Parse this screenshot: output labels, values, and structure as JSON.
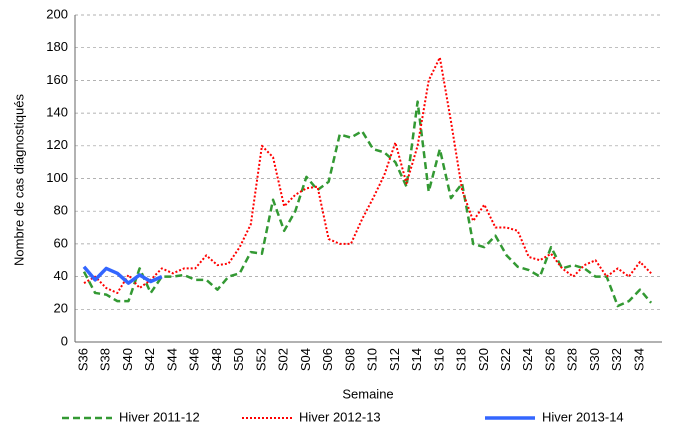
{
  "chart_data": {
    "type": "line",
    "x_label": "Semaine",
    "y_label": "Nombre de cas diagnostiqués",
    "categories": [
      "S36",
      null,
      "S38",
      null,
      "S40",
      null,
      "S42",
      null,
      "S44",
      null,
      "S46",
      null,
      "S48",
      null,
      "S50",
      null,
      "S52",
      null,
      "S02",
      null,
      "S04",
      null,
      "S06",
      null,
      "S08",
      null,
      "S10",
      null,
      "S12",
      null,
      "S14",
      null,
      "S16",
      null,
      "S18",
      null,
      "S20",
      null,
      "S22",
      null,
      "S24",
      null,
      "S26",
      null,
      "S28",
      null,
      "S30",
      null,
      "S32",
      null,
      "S34",
      null
    ],
    "series": [
      {
        "name": "Hiver 2011-12",
        "color": "#339933",
        "style": "dashed",
        "values": [
          43,
          30,
          29,
          25,
          25,
          45,
          30,
          40,
          40,
          41,
          38,
          38,
          32,
          40,
          42,
          55,
          54,
          87,
          68,
          80,
          101,
          93,
          98,
          127,
          125,
          129,
          118,
          116,
          110,
          95,
          147,
          92,
          118,
          88,
          97,
          60,
          58,
          65,
          53,
          46,
          44,
          40,
          58,
          45,
          47,
          45,
          40,
          40,
          22,
          25,
          32,
          24
        ]
      },
      {
        "name": "Hiver 2012-13",
        "color": "#ff0000",
        "style": "dotted",
        "values": [
          36,
          40,
          33,
          30,
          41,
          33,
          38,
          45,
          42,
          45,
          45,
          53,
          47,
          48,
          58,
          72,
          120,
          113,
          83,
          90,
          94,
          95,
          63,
          60,
          60,
          75,
          88,
          102,
          122,
          97,
          120,
          160,
          174,
          135,
          93,
          74,
          84,
          70,
          70,
          68,
          52,
          50,
          54,
          45,
          40,
          47,
          50,
          40,
          45,
          40,
          49,
          42
        ]
      },
      {
        "name": "Hiver 2013-14",
        "color": "#3366ff",
        "style": "solid",
        "values": [
          46,
          38,
          45,
          42,
          36,
          41,
          37,
          40,
          null,
          null,
          null,
          null,
          null,
          null,
          null,
          null,
          null,
          null,
          null,
          null,
          null,
          null,
          null,
          null,
          null,
          null,
          null,
          null,
          null,
          null,
          null,
          null,
          null,
          null,
          null,
          null,
          null,
          null,
          null,
          null,
          null,
          null,
          null,
          null,
          null,
          null,
          null,
          null,
          null,
          null,
          null,
          null
        ]
      }
    ],
    "ylim": [
      0,
      200
    ],
    "yticks": [
      0,
      20,
      40,
      60,
      80,
      100,
      120,
      140,
      160,
      180,
      200
    ],
    "grid": true,
    "legend": "bottom"
  }
}
